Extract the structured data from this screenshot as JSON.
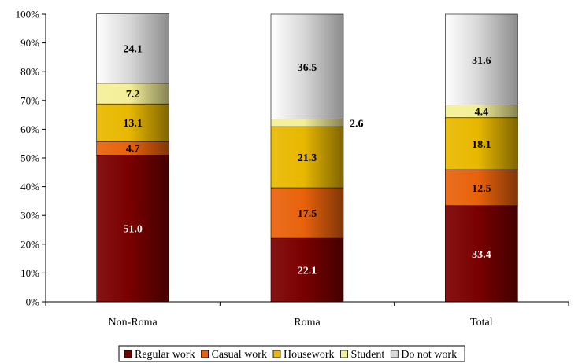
{
  "chart_data": {
    "type": "bar",
    "stacked": true,
    "percent_axis": true,
    "categories": [
      "Non-Roma",
      "Roma",
      "Total"
    ],
    "series": [
      {
        "name": "Regular work",
        "color": "#7a0000",
        "label_color": "#ffffff",
        "values": [
          51.0,
          22.1,
          33.4
        ],
        "labels": [
          "51.0",
          "22.1",
          "33.4"
        ]
      },
      {
        "name": "Casual work",
        "color": "#e8620c",
        "label_color": "#000000",
        "values": [
          4.7,
          17.5,
          12.5
        ],
        "labels": [
          "4.7",
          "17.5",
          "12.5"
        ]
      },
      {
        "name": "Housework",
        "color": "#e8b800",
        "label_color": "#000000",
        "values": [
          13.1,
          21.3,
          18.1
        ],
        "labels": [
          "13.1",
          "21.3",
          "18.1"
        ]
      },
      {
        "name": "Student",
        "color": "#f3ef98",
        "label_color": "#000000",
        "values": [
          7.2,
          2.6,
          4.4
        ],
        "labels": [
          "7.2",
          "2.6",
          "4.4"
        ]
      },
      {
        "name": "Do not work",
        "color": "#d8d8d8",
        "label_color": "#000000",
        "values": [
          24.1,
          36.5,
          31.6
        ],
        "labels": [
          "24.1",
          "36.5",
          "31.6"
        ]
      }
    ],
    "y_ticks": [
      "0%",
      "10%",
      "20%",
      "30%",
      "40%",
      "50%",
      "60%",
      "70%",
      "80%",
      "90%",
      "100%"
    ],
    "ylim": [
      0,
      100
    ],
    "grid": false,
    "legend_position": "bottom"
  }
}
